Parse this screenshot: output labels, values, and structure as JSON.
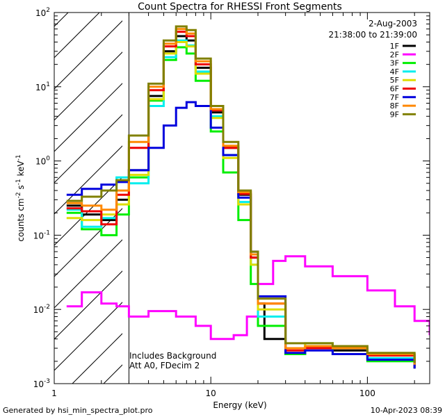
{
  "chart_data": {
    "type": "line",
    "title": "Count Spectra for RHESSI Front Segments",
    "date": "2-Aug-2003",
    "time_range": "21:38:00 to 21:39:00",
    "xlabel": "Energy (keV)",
    "ylabel": "counts cm^-2 s^-1 keV^-1",
    "xscale": "log",
    "yscale": "log",
    "xlim": [
      1,
      250
    ],
    "ylim": [
      0.001,
      100
    ],
    "x_ticks": [
      1,
      10,
      100
    ],
    "y_ticks": [
      0.001,
      0.01,
      0.1,
      1,
      10,
      100
    ],
    "shaded_region_kev": [
      1,
      3
    ],
    "attenuator_line_kev": 3,
    "annotations": [
      "Includes Background",
      "Att A0, FDecim 2"
    ],
    "legend_position": "top-right",
    "series": [
      {
        "name": "1F",
        "color": "#000000",
        "points": [
          [
            1.2,
            0.25
          ],
          [
            1.5,
            0.19
          ],
          [
            2.0,
            0.16
          ],
          [
            2.5,
            0.3
          ],
          [
            3.0,
            0.75
          ],
          [
            4.0,
            7.5
          ],
          [
            5.0,
            30
          ],
          [
            6.0,
            48
          ],
          [
            7.0,
            42
          ],
          [
            8.0,
            18
          ],
          [
            10,
            4.5
          ],
          [
            12,
            1.5
          ],
          [
            15,
            0.35
          ],
          [
            18,
            0.05
          ],
          [
            20,
            0.012
          ],
          [
            22,
            0.004
          ],
          [
            30,
            0.0025
          ],
          [
            40,
            0.003
          ],
          [
            60,
            0.0028
          ],
          [
            100,
            0.0022
          ],
          [
            200,
            0.0016
          ]
        ]
      },
      {
        "name": "2F",
        "color": "#ff00ff",
        "points": [
          [
            1.2,
            0.011
          ],
          [
            1.5,
            0.017
          ],
          [
            2.0,
            0.012
          ],
          [
            2.5,
            0.011
          ],
          [
            3.0,
            0.008
          ],
          [
            4.0,
            0.0095
          ],
          [
            6.0,
            0.008
          ],
          [
            8.0,
            0.006
          ],
          [
            10,
            0.004
          ],
          [
            14,
            0.0045
          ],
          [
            17,
            0.008
          ],
          [
            20,
            0.022
          ],
          [
            25,
            0.045
          ],
          [
            30,
            0.052
          ],
          [
            40,
            0.038
          ],
          [
            60,
            0.028
          ],
          [
            100,
            0.018
          ],
          [
            150,
            0.011
          ],
          [
            200,
            0.007
          ],
          [
            250,
            0.0045
          ]
        ]
      },
      {
        "name": "3F",
        "color": "#00ee00",
        "points": [
          [
            1.2,
            0.2
          ],
          [
            1.5,
            0.12
          ],
          [
            2.0,
            0.1
          ],
          [
            2.5,
            0.19
          ],
          [
            3.0,
            0.6
          ],
          [
            4.0,
            6.5
          ],
          [
            5.0,
            23
          ],
          [
            6.0,
            34
          ],
          [
            7.0,
            28
          ],
          [
            8.0,
            12
          ],
          [
            10,
            2.5
          ],
          [
            12,
            0.7
          ],
          [
            15,
            0.16
          ],
          [
            18,
            0.022
          ],
          [
            20,
            0.006
          ],
          [
            30,
            0.0025
          ],
          [
            40,
            0.003
          ],
          [
            60,
            0.0025
          ],
          [
            100,
            0.002
          ],
          [
            200,
            0.0018
          ]
        ]
      },
      {
        "name": "4F",
        "color": "#00eeee",
        "points": [
          [
            1.2,
            0.22
          ],
          [
            1.5,
            0.13
          ],
          [
            2.0,
            0.17
          ],
          [
            2.5,
            0.6
          ],
          [
            3.0,
            0.5
          ],
          [
            4.0,
            5.5
          ],
          [
            5.0,
            25
          ],
          [
            6.0,
            42
          ],
          [
            7.0,
            36
          ],
          [
            8.0,
            16
          ],
          [
            10,
            4.0
          ],
          [
            12,
            1.2
          ],
          [
            15,
            0.28
          ],
          [
            18,
            0.04
          ],
          [
            20,
            0.008
          ],
          [
            30,
            0.003
          ],
          [
            40,
            0.0035
          ],
          [
            60,
            0.003
          ],
          [
            100,
            0.0022
          ],
          [
            200,
            0.0017
          ]
        ]
      },
      {
        "name": "5F",
        "color": "#dddd00",
        "points": [
          [
            1.2,
            0.17
          ],
          [
            1.5,
            0.16
          ],
          [
            2.0,
            0.19
          ],
          [
            2.5,
            0.26
          ],
          [
            3.0,
            0.65
          ],
          [
            4.0,
            6.8
          ],
          [
            5.0,
            28
          ],
          [
            6.0,
            40
          ],
          [
            7.0,
            35
          ],
          [
            8.0,
            15
          ],
          [
            10,
            3.8
          ],
          [
            12,
            1.1
          ],
          [
            15,
            0.26
          ],
          [
            18,
            0.04
          ],
          [
            20,
            0.01
          ],
          [
            30,
            0.003
          ],
          [
            40,
            0.0035
          ],
          [
            60,
            0.003
          ],
          [
            100,
            0.0025
          ],
          [
            200,
            0.0018
          ]
        ]
      },
      {
        "name": "6F",
        "color": "#ee0000",
        "points": [
          [
            1.2,
            0.23
          ],
          [
            1.5,
            0.21
          ],
          [
            2.0,
            0.14
          ],
          [
            2.5,
            0.35
          ],
          [
            3.0,
            1.5
          ],
          [
            4.0,
            9.0
          ],
          [
            5.0,
            35
          ],
          [
            6.0,
            55
          ],
          [
            7.0,
            48
          ],
          [
            8.0,
            20
          ],
          [
            10,
            4.8
          ],
          [
            12,
            1.5
          ],
          [
            15,
            0.36
          ],
          [
            18,
            0.05
          ],
          [
            20,
            0.012
          ],
          [
            30,
            0.0028
          ],
          [
            40,
            0.003
          ],
          [
            60,
            0.003
          ],
          [
            100,
            0.0024
          ],
          [
            200,
            0.0017
          ]
        ]
      },
      {
        "name": "7F",
        "color": "#0000dd",
        "points": [
          [
            1.2,
            0.35
          ],
          [
            1.5,
            0.42
          ],
          [
            2.0,
            0.48
          ],
          [
            2.5,
            0.52
          ],
          [
            3.0,
            0.75
          ],
          [
            4.0,
            1.5
          ],
          [
            5.0,
            3.0
          ],
          [
            6.0,
            5.2
          ],
          [
            7.0,
            6.2
          ],
          [
            8.0,
            5.5
          ],
          [
            10,
            2.8
          ],
          [
            12,
            1.2
          ],
          [
            15,
            0.32
          ],
          [
            18,
            0.06
          ],
          [
            20,
            0.015
          ],
          [
            30,
            0.0026
          ],
          [
            40,
            0.0028
          ],
          [
            60,
            0.0025
          ],
          [
            100,
            0.0021
          ],
          [
            200,
            0.0016
          ]
        ]
      },
      {
        "name": "8F",
        "color": "#ff8800",
        "points": [
          [
            1.2,
            0.27
          ],
          [
            1.5,
            0.25
          ],
          [
            2.0,
            0.22
          ],
          [
            2.5,
            0.4
          ],
          [
            3.0,
            1.8
          ],
          [
            4.0,
            10
          ],
          [
            5.0,
            38
          ],
          [
            6.0,
            60
          ],
          [
            7.0,
            52
          ],
          [
            8.0,
            22
          ],
          [
            10,
            5.0
          ],
          [
            12,
            1.6
          ],
          [
            15,
            0.38
          ],
          [
            18,
            0.055
          ],
          [
            20,
            0.012
          ],
          [
            30,
            0.003
          ],
          [
            40,
            0.0032
          ],
          [
            60,
            0.003
          ],
          [
            100,
            0.0025
          ],
          [
            200,
            0.0018
          ]
        ]
      },
      {
        "name": "9F",
        "color": "#808000",
        "points": [
          [
            1.2,
            0.29
          ],
          [
            1.5,
            0.33
          ],
          [
            2.0,
            0.4
          ],
          [
            2.5,
            0.55
          ],
          [
            3.0,
            2.2
          ],
          [
            4.0,
            11
          ],
          [
            5.0,
            42
          ],
          [
            6.0,
            65
          ],
          [
            7.0,
            58
          ],
          [
            8.0,
            24
          ],
          [
            10,
            5.5
          ],
          [
            12,
            1.8
          ],
          [
            15,
            0.4
          ],
          [
            18,
            0.06
          ],
          [
            20,
            0.014
          ],
          [
            30,
            0.0035
          ],
          [
            40,
            0.0035
          ],
          [
            60,
            0.0032
          ],
          [
            100,
            0.0026
          ],
          [
            200,
            0.0019
          ]
        ]
      }
    ]
  },
  "footer": {
    "left": "Generated by hsi_min_spectra_plot.pro",
    "right": "10-Apr-2023 08:39"
  }
}
